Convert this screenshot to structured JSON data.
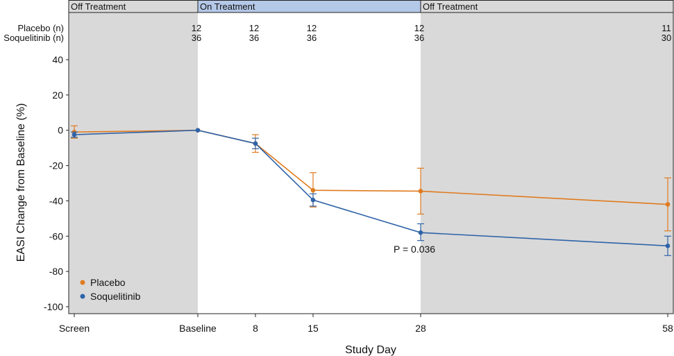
{
  "chart_data": {
    "type": "line",
    "title": "",
    "xlabel": "Study Day",
    "ylabel": "EASI Change from Baseline (%)",
    "ylim": [
      -100,
      40
    ],
    "yticks": [
      40,
      20,
      0,
      -20,
      -40,
      -60,
      -80,
      -100
    ],
    "categories": [
      "Screen",
      "Baseline",
      "8",
      "15",
      "28",
      "58"
    ],
    "phases": [
      {
        "label": "Off Treatment",
        "from": 0,
        "to": 1
      },
      {
        "label": "On Treatment",
        "from": 1,
        "to": 4
      },
      {
        "label": "Off Treatment",
        "from": 4,
        "to": 5
      }
    ],
    "n_rows": [
      {
        "label": "Placebo (n)",
        "values": [
          "",
          "12",
          "12",
          "12",
          "12",
          "11"
        ]
      },
      {
        "label": "Soquelitinib (n)",
        "values": [
          "",
          "36",
          "36",
          "36",
          "36",
          "30"
        ]
      }
    ],
    "series": [
      {
        "name": "Placebo",
        "color": "#E07B1F",
        "values": [
          -1,
          0,
          -7.5,
          -34,
          -34.5,
          -42
        ],
        "err_low": [
          -4.5,
          0,
          -12.5,
          -43.5,
          -47.5,
          -57
        ],
        "err_high": [
          2.5,
          0,
          -2.5,
          -24,
          -21.5,
          -27
        ]
      },
      {
        "name": "Soquelitinib",
        "color": "#2F63A8",
        "values": [
          -2.5,
          0,
          -7.5,
          -39.5,
          -58,
          -65.5
        ],
        "err_low": [
          -4,
          0,
          -10.5,
          -43,
          -62.5,
          -71
        ],
        "err_high": [
          -1,
          0,
          -4.5,
          -36,
          -53,
          -60
        ]
      }
    ],
    "annotations": [
      {
        "text": "P = 0.036"
      }
    ],
    "legend_position": "bottom-left"
  }
}
